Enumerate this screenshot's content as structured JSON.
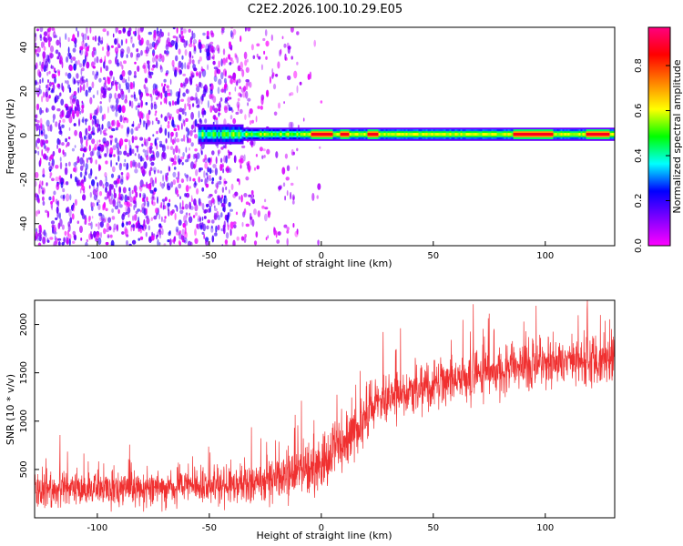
{
  "title": "C2E2.2026.100.10.29.E05",
  "chart_data": [
    {
      "type": "heatmap",
      "xlabel": "Height of straight line (km)",
      "ylabel": "Frequency (Hz)",
      "xlim": [
        -128,
        131
      ],
      "ylim": [
        -50,
        49
      ],
      "xticks": [
        -100,
        -50,
        0,
        50,
        100
      ],
      "yticks": [
        -40,
        -20,
        0,
        20,
        40
      ],
      "colorbar": {
        "label": "Normalized spectral amplitude",
        "range": [
          0,
          0.97
        ],
        "ticks": [
          "0.0",
          "0.2",
          "0.4",
          "0.6",
          "0.8"
        ],
        "tick_values": [
          0.0,
          0.2,
          0.4,
          0.6,
          0.8
        ],
        "colors": [
          "#ff00ff",
          "#8000ff",
          "#0000ff",
          "#00ffff",
          "#00ff00",
          "#ffff00",
          "#ff8000",
          "#ff0000",
          "#ff0080"
        ]
      },
      "features": {
        "noise_region_x": [
          -128,
          -10
        ],
        "signal_band_x": [
          -55,
          131
        ],
        "signal_band_freq_center": 0.5,
        "signal_band_halfwidth_hz": 3,
        "peak_regions_x": [
          [
            -5,
            5
          ],
          [
            8,
            12
          ],
          [
            20,
            25
          ],
          [
            85,
            103
          ],
          [
            118,
            128
          ]
        ]
      }
    },
    {
      "type": "line",
      "xlabel": "Height of straight line (km)",
      "ylabel": "SNR (10 * v/v)",
      "xlim": [
        -128,
        131
      ],
      "ylim": [
        0,
        2250
      ],
      "xticks": [
        -100,
        -50,
        0,
        50,
        100
      ],
      "yticks": [
        500,
        1000,
        1500,
        2000
      ],
      "color": "#f03030",
      "trend": {
        "x": [
          -128,
          -100,
          -50,
          -30,
          -15,
          0,
          10,
          15,
          20,
          25,
          30,
          40,
          50,
          60,
          80,
          100,
          120,
          131
        ],
        "y": [
          290,
          300,
          330,
          360,
          420,
          560,
          780,
          900,
          1050,
          1200,
          1270,
          1320,
          1380,
          1450,
          1530,
          1590,
          1630,
          1650
        ]
      },
      "noise_amplitude": {
        "x": [
          -128,
          -30,
          0,
          30,
          131
        ],
        "y": [
          200,
          220,
          350,
          300,
          280
        ]
      }
    }
  ]
}
